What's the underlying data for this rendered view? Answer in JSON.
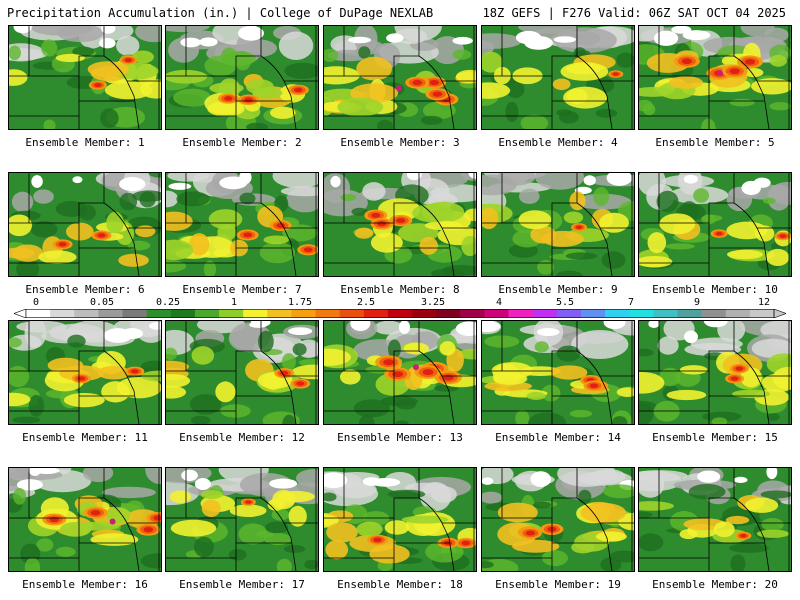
{
  "header": {
    "left": "Precipitation Accumulation (in.) | College of DuPage NEXLAB",
    "right": "18Z GEFS | F276 Valid: 06Z SAT OCT 04 2025"
  },
  "colorbar": {
    "ticks": [
      "0",
      "0.05",
      "0.25",
      "1",
      "1.75",
      "2.5",
      "3.25",
      "4",
      "5.5",
      "7",
      "9",
      "12"
    ],
    "colors": [
      "#ffffff",
      "#d9d9d9",
      "#bdbdbd",
      "#9b9b9b",
      "#7a7a7a",
      "#2f8f2f",
      "#1f7a1f",
      "#4ca82c",
      "#8fce2a",
      "#f2f230",
      "#f2c020",
      "#f5a010",
      "#f07a10",
      "#e85010",
      "#e02010",
      "#c00010",
      "#9a0010",
      "#800020",
      "#a0004a",
      "#d0007a",
      "#f020c0",
      "#c030f0",
      "#8060f0",
      "#6090f0",
      "#30d0f0",
      "#20e0e0",
      "#40c0c0",
      "#50a0a0",
      "#909090",
      "#b0b0b0",
      "#c8c8c8"
    ]
  },
  "panels": [
    {
      "label": "Ensemble Member: 1",
      "heavy": 0.3
    },
    {
      "label": "Ensemble Member: 2",
      "heavy": 0.45
    },
    {
      "label": "Ensemble Member: 3",
      "heavy": 0.6
    },
    {
      "label": "Ensemble Member: 4",
      "heavy": 0.15
    },
    {
      "label": "Ensemble Member: 5",
      "heavy": 0.7
    },
    {
      "label": "Ensemble Member: 6",
      "heavy": 0.4
    },
    {
      "label": "Ensemble Member: 7",
      "heavy": 0.5
    },
    {
      "label": "Ensemble Member: 8",
      "heavy": 0.55
    },
    {
      "label": "Ensemble Member: 9",
      "heavy": 0.2
    },
    {
      "label": "Ensemble Member: 10",
      "heavy": 0.25
    },
    {
      "label": "Ensemble Member: 11",
      "heavy": 0.35
    },
    {
      "label": "Ensemble Member: 12",
      "heavy": 0.4
    },
    {
      "label": "Ensemble Member: 13",
      "heavy": 0.75
    },
    {
      "label": "Ensemble Member: 14",
      "heavy": 0.45
    },
    {
      "label": "Ensemble Member: 15",
      "heavy": 0.35
    },
    {
      "label": "Ensemble Member: 16",
      "heavy": 0.6
    },
    {
      "label": "Ensemble Member: 17",
      "heavy": 0.15
    },
    {
      "label": "Ensemble Member: 18",
      "heavy": 0.45
    },
    {
      "label": "Ensemble Member: 19",
      "heavy": 0.55
    },
    {
      "label": "Ensemble Member: 20",
      "heavy": 0.2
    }
  ]
}
